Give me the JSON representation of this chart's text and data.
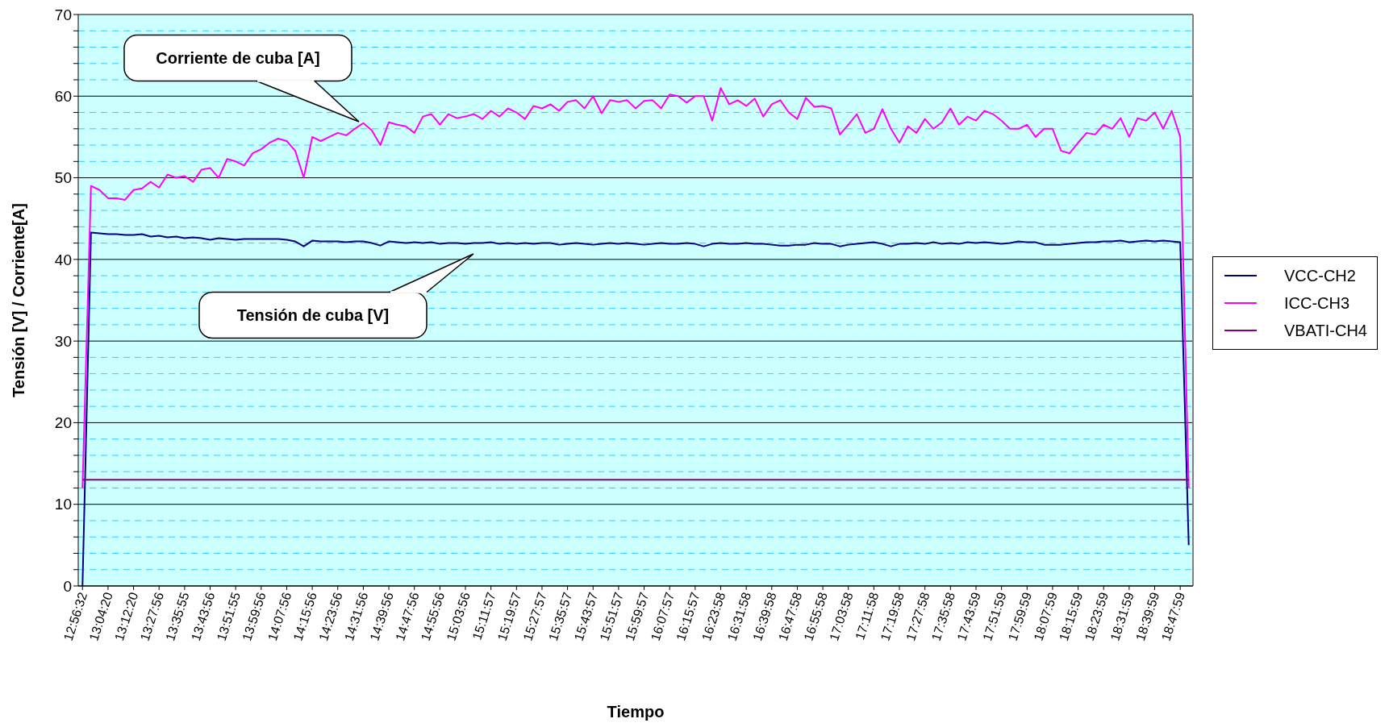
{
  "chart_data": {
    "type": "line",
    "xlabel": "Tiempo",
    "ylabel": "Tensión [V] / Corriente[A]",
    "categories": [
      "12:56:32",
      null,
      null,
      "13:04:20",
      null,
      null,
      "13:12:20",
      null,
      null,
      "13:27:56",
      null,
      null,
      "13:35:55",
      null,
      null,
      "13:43:56",
      null,
      null,
      "13:51:55",
      null,
      null,
      "13:59:56",
      null,
      null,
      "14:07:56",
      null,
      null,
      "14:15:56",
      null,
      null,
      "14:23:56",
      null,
      null,
      "14:31:56",
      null,
      null,
      "14:39:56",
      null,
      null,
      "14:47:56",
      null,
      null,
      "14:55:56",
      null,
      null,
      "15:03:56",
      null,
      null,
      "15:11:57",
      null,
      null,
      "15:19:57",
      null,
      null,
      "15:27:57",
      null,
      null,
      "15:35:57",
      null,
      null,
      "15:43:57",
      null,
      null,
      "15:51:57",
      null,
      null,
      "15:59:57",
      null,
      null,
      "16:07:57",
      null,
      null,
      "16:15:57",
      null,
      null,
      "16:23:58",
      null,
      null,
      "16:31:58",
      null,
      null,
      "16:39:58",
      null,
      null,
      "16:47:58",
      null,
      null,
      "16:55:58",
      null,
      null,
      "17:03:58",
      null,
      null,
      "17:11:58",
      null,
      null,
      "17:19:58",
      null,
      null,
      "17:27:58",
      null,
      null,
      "17:35:58",
      null,
      null,
      "17:43:59",
      null,
      null,
      "17:51:59",
      null,
      null,
      "17:59:59",
      null,
      null,
      "18:07:59",
      null,
      null,
      "18:15:59",
      null,
      null,
      "18:23:59",
      null,
      null,
      "18:31:59",
      null,
      null,
      "18:39:59",
      null,
      null,
      "18:47:59",
      null
    ],
    "series": [
      {
        "name": "VCC-CH2",
        "color": "#000080",
        "values": [
          0,
          43.3,
          43.2,
          43.1,
          43.1,
          43.0,
          43.0,
          43.1,
          42.8,
          42.9,
          42.7,
          42.8,
          42.6,
          42.7,
          42.6,
          42.4,
          42.6,
          42.5,
          42.4,
          42.5,
          42.5,
          42.5,
          42.5,
          42.5,
          42.4,
          42.2,
          41.6,
          42.3,
          42.2,
          42.2,
          42.2,
          42.1,
          42.2,
          42.2,
          42.0,
          41.7,
          42.2,
          42.1,
          42.0,
          42.1,
          42.0,
          42.1,
          41.9,
          42.0,
          42.0,
          41.9,
          42.0,
          42.0,
          42.1,
          41.9,
          42.0,
          41.9,
          42.0,
          41.9,
          42.0,
          42.0,
          41.8,
          41.9,
          42.0,
          41.9,
          41.8,
          41.9,
          42.0,
          41.9,
          42.0,
          41.9,
          41.8,
          41.9,
          42.0,
          41.9,
          41.9,
          42.0,
          41.9,
          41.6,
          41.9,
          42.0,
          41.9,
          41.9,
          42.0,
          41.9,
          41.9,
          41.8,
          41.7,
          41.7,
          41.8,
          41.8,
          42.0,
          41.9,
          41.9,
          41.6,
          41.8,
          41.9,
          42.0,
          42.1,
          41.9,
          41.6,
          41.9,
          41.9,
          42.0,
          41.9,
          42.1,
          41.9,
          42.0,
          41.9,
          42.1,
          42.0,
          42.1,
          42.0,
          41.9,
          42.0,
          42.2,
          42.1,
          42.1,
          41.8,
          41.8,
          41.8,
          41.9,
          42.0,
          42.1,
          42.1,
          42.2,
          42.2,
          42.3,
          42.1,
          42.2,
          42.3,
          42.2,
          42.3,
          42.2,
          42.1,
          5
        ]
      },
      {
        "name": "ICC-CH3",
        "color": "#ff00ff",
        "values": [
          12,
          49,
          48.5,
          47.5,
          47.5,
          47.3,
          48.5,
          48.7,
          49.5,
          48.8,
          50.4,
          50,
          50.2,
          49.5,
          51,
          51.2,
          50,
          52.3,
          52,
          51.5,
          53,
          53.5,
          54.3,
          54.8,
          54.5,
          53.3,
          50,
          55,
          54.5,
          55,
          55.5,
          55.2,
          56,
          56.7,
          55.8,
          54,
          56.8,
          56.5,
          56.3,
          55.5,
          57.5,
          57.8,
          56.5,
          57.8,
          57.3,
          57.5,
          57.8,
          57.2,
          58.2,
          57.5,
          58.5,
          58,
          57.2,
          58.8,
          58.5,
          59,
          58.2,
          59.3,
          59.5,
          58.5,
          60,
          57.9,
          59.5,
          59.3,
          59.5,
          58.5,
          59.4,
          59.5,
          58.5,
          60.2,
          60,
          59.2,
          60,
          60,
          57,
          61,
          59,
          59.5,
          58.8,
          59.7,
          57.5,
          59,
          59.5,
          58,
          57.2,
          59.8,
          58.7,
          58.8,
          58.5,
          55.3,
          56.5,
          57.8,
          55.5,
          56,
          58.4,
          56,
          54.3,
          56.3,
          55.5,
          57.2,
          56,
          56.8,
          58.5,
          56.5,
          57.5,
          57,
          58.2,
          57.8,
          57,
          56,
          56,
          56.5,
          55,
          56,
          56,
          53.3,
          53,
          54.3,
          55.5,
          55.3,
          56.5,
          56,
          57.3,
          55,
          57.3,
          57,
          58,
          56,
          58.2,
          55,
          12
        ]
      },
      {
        "name": "VBATI-CH4",
        "color": "#800080",
        "values": [
          13,
          13,
          13,
          13,
          13,
          13,
          13,
          13,
          13,
          13,
          13,
          13,
          13,
          13,
          13,
          13,
          13,
          13,
          13,
          13,
          13,
          13,
          13,
          13,
          13,
          13,
          13,
          13,
          13,
          13,
          13,
          13,
          13,
          13,
          13,
          13,
          13,
          13,
          13,
          13,
          13,
          13,
          13,
          13,
          13,
          13,
          13,
          13,
          13,
          13,
          13,
          13,
          13,
          13,
          13,
          13,
          13,
          13,
          13,
          13,
          13,
          13,
          13,
          13,
          13,
          13,
          13,
          13,
          13,
          13,
          13,
          13,
          13,
          13,
          13,
          13,
          13,
          13,
          13,
          13,
          13,
          13,
          13,
          13,
          13,
          13,
          13,
          13,
          13,
          13,
          13,
          13,
          13,
          13,
          13,
          13,
          13,
          13,
          13,
          13,
          13,
          13,
          13,
          13,
          13,
          13,
          13,
          13,
          13,
          13,
          13,
          13,
          13,
          13,
          13,
          13,
          13,
          13,
          13,
          13,
          13,
          13,
          13,
          13,
          13,
          13,
          13,
          13,
          13,
          13,
          13
        ]
      }
    ],
    "ylim": [
      0,
      70
    ],
    "yticks": [
      0,
      {
        "value": 2,
        "label": null
      },
      {
        "value": 4,
        "label": null
      },
      {
        "value": 6,
        "label": null
      },
      {
        "value": 8,
        "label": null
      },
      10,
      {
        "value": 12,
        "label": null
      },
      {
        "value": 14,
        "label": null
      },
      {
        "value": 16,
        "label": null
      },
      {
        "value": 18,
        "label": null
      },
      20,
      {
        "value": 22,
        "label": null
      },
      {
        "value": 24,
        "label": null
      },
      {
        "value": 26,
        "label": null
      },
      {
        "value": 28,
        "label": null
      },
      30,
      {
        "value": 32,
        "label": null
      },
      {
        "value": 34,
        "label": null
      },
      {
        "value": 36,
        "label": null
      },
      {
        "value": 38,
        "label": null
      },
      40,
      {
        "value": 42,
        "label": null
      },
      {
        "value": 44,
        "label": null
      },
      {
        "value": 46,
        "label": null
      },
      {
        "value": 48,
        "label": null
      },
      50,
      {
        "value": 52,
        "label": null
      },
      {
        "value": 54,
        "label": null
      },
      {
        "value": 56,
        "label": null
      },
      {
        "value": 58,
        "label": null
      },
      60,
      {
        "value": 62,
        "label": null
      },
      {
        "value": 64,
        "label": null
      },
      {
        "value": 66,
        "label": null
      },
      {
        "value": 68,
        "label": null
      },
      70
    ],
    "grid": "y",
    "legend": "right",
    "annotations": [
      "Corriente de cuba [A]",
      "Tensión de cuba [V]"
    ]
  }
}
